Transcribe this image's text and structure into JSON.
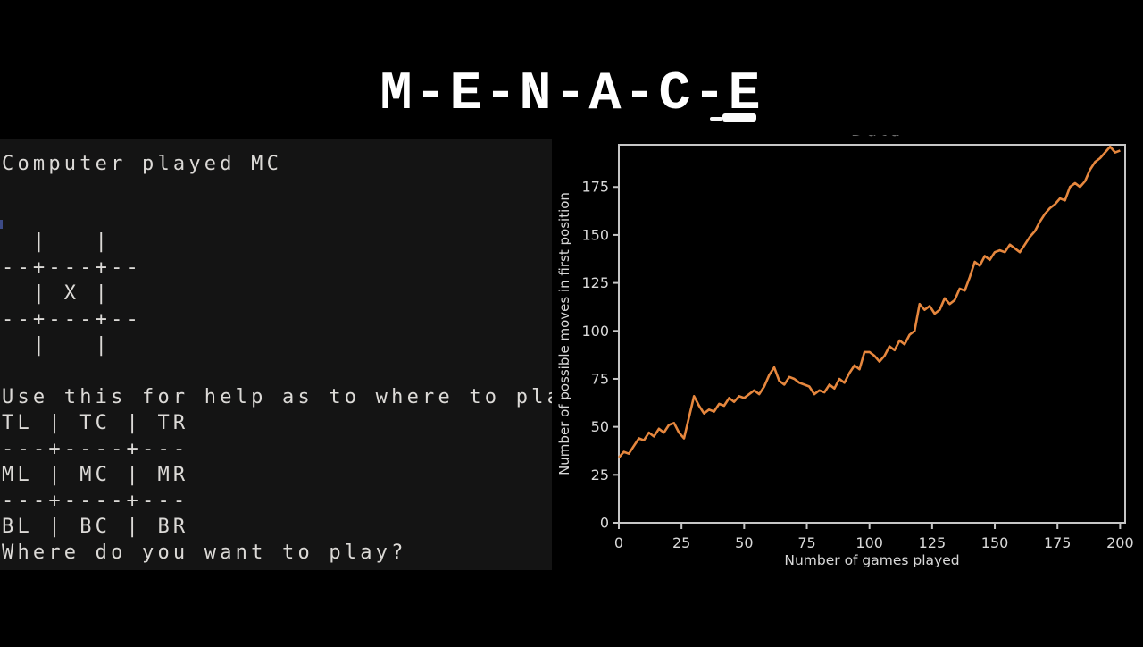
{
  "page": {
    "background": "#000000"
  },
  "title": {
    "text": "M-E-N-A-C-E",
    "color": "#ffffff"
  },
  "terminal": {
    "background": "#141414",
    "text_color": "#dcdad7",
    "lines": [
      "Computer played MC",
      "",
      "",
      "  |   |",
      "--+---+--",
      "  | X |",
      "--+---+--",
      "  |   |",
      "",
      "Use this for help as to where to play",
      "TL | TC | TR",
      "---+----+---",
      "ML | MC | MR",
      "---+----+---",
      "BL | BC | BR",
      "Where do you want to play?"
    ]
  },
  "chart_data": {
    "type": "line",
    "title": "",
    "clipped_legend_text": "Data",
    "xlabel": "Number of games played",
    "ylabel": "Number of possible moves in first position",
    "xticks": [
      0,
      25,
      50,
      75,
      100,
      125,
      150,
      175,
      200
    ],
    "yticks": [
      0,
      25,
      50,
      75,
      100,
      125,
      150,
      175
    ],
    "xlim": [
      0,
      202
    ],
    "ylim": [
      0,
      197
    ],
    "grid": false,
    "legend_position": "none",
    "line_color": "#e6873e",
    "axis_color": "#c6c6c6",
    "tick_label_color": "#d9d9d9",
    "series": [
      {
        "name": "Number of possible moves in first position",
        "x_start": 0,
        "x_step": 2,
        "values": [
          34,
          37,
          36,
          40,
          44,
          43,
          47,
          45,
          49,
          47,
          51,
          52,
          47,
          44,
          55,
          66,
          61,
          57,
          59,
          58,
          62,
          61,
          65,
          63,
          66,
          65,
          67,
          69,
          67,
          71,
          77,
          81,
          74,
          72,
          76,
          75,
          73,
          72,
          71,
          67,
          69,
          68,
          72,
          70,
          75,
          73,
          78,
          82,
          80,
          89,
          89,
          87,
          84,
          87,
          92,
          90,
          95,
          93,
          98,
          100,
          114,
          111,
          113,
          109,
          111,
          117,
          114,
          116,
          122,
          121,
          128,
          136,
          134,
          139,
          137,
          141,
          142,
          141,
          145,
          143,
          141,
          145,
          149,
          152,
          157,
          161,
          164,
          166,
          169,
          168,
          175,
          177,
          175,
          178,
          184,
          188,
          190,
          193,
          196,
          193,
          194
        ]
      }
    ]
  }
}
